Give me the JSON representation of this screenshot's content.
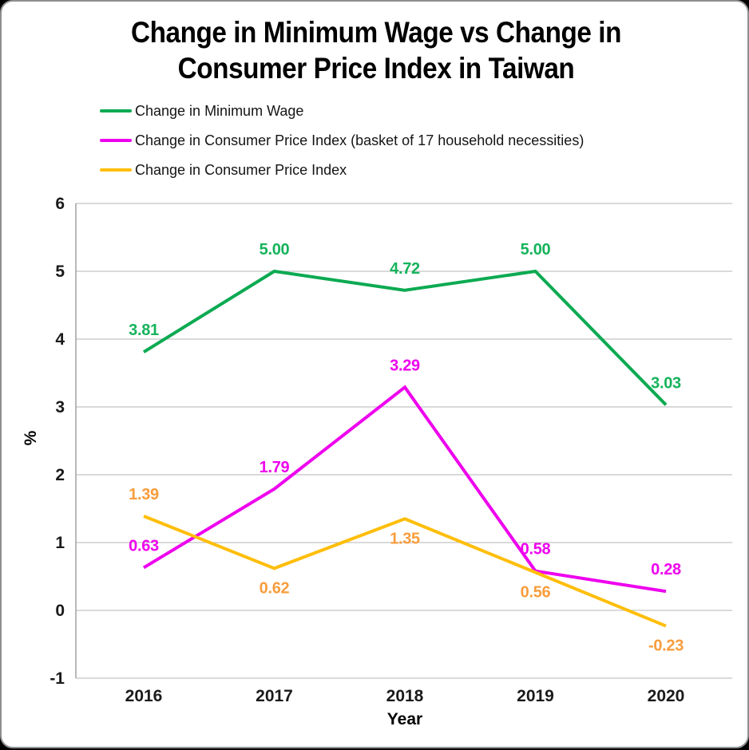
{
  "title": {
    "line1": "Change in Minimum Wage vs Change in",
    "line2": "Consumer Price Index in Taiwan"
  },
  "axes": {
    "y_axis_label": "%",
    "x_axis_label": "Year",
    "y_ticks": [
      "6",
      "5",
      "4",
      "3",
      "2",
      "1",
      "0",
      "-1"
    ],
    "x_ticks": [
      "2016",
      "2017",
      "2018",
      "2019",
      "2020"
    ]
  },
  "style": {
    "gridline_color": "#c3c3c3",
    "axis_color": "#a0a0a0",
    "tick_color": "#1a1a1a",
    "background": "#ffffff",
    "frame_color": "#000000"
  },
  "chart_data": {
    "type": "line",
    "title": "Change in Minimum Wage vs Change in Consumer Price Index in Taiwan",
    "xlabel": "Year",
    "ylabel": "%",
    "x": [
      2016,
      2017,
      2018,
      2019,
      2020
    ],
    "ylim": [
      -1,
      6
    ],
    "grid": true,
    "legend_position": "top-left",
    "series": [
      {
        "name": "Change in Minimum Wage",
        "color": "#0caa52",
        "label_color": "#15b35b",
        "values": [
          3.81,
          5.0,
          4.72,
          5.0,
          3.03
        ],
        "label_positions": [
          "above",
          "above",
          "above",
          "above",
          "above"
        ]
      },
      {
        "name": "Change in Consumer Price Index (basket of 17 household necessities)",
        "color": "#ee00ee",
        "label_color": "#ee00ee",
        "values": [
          0.63,
          1.79,
          3.29,
          0.58,
          0.28
        ],
        "label_positions": [
          "above",
          "above",
          "above",
          "above",
          "above"
        ]
      },
      {
        "name": "Change in Consumer Price Index",
        "color": "#ffbe0c",
        "label_color": "#f89d3c",
        "values": [
          1.39,
          0.62,
          1.35,
          0.56,
          -0.23
        ],
        "label_positions": [
          "above",
          "below",
          "below",
          "below",
          "below"
        ]
      }
    ]
  }
}
